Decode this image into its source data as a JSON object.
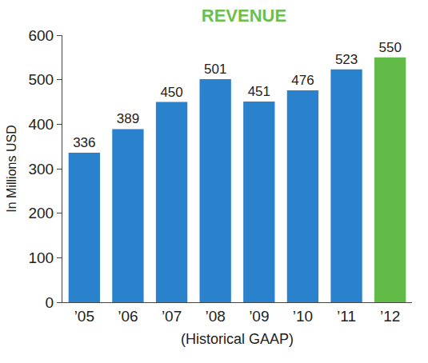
{
  "chart_data": {
    "type": "bar",
    "title": "REVENUE",
    "x_label": "(Historical GAAP)",
    "y_label": "In Millions USD",
    "categories": [
      "’05",
      "’06",
      "’07",
      "’08",
      "’09",
      "’10",
      "’11",
      "’12"
    ],
    "values": [
      336,
      389,
      450,
      501,
      451,
      476,
      523,
      550
    ],
    "colors": [
      "#2b82cc",
      "#2b82cc",
      "#2b82cc",
      "#2b82cc",
      "#2b82cc",
      "#2b82cc",
      "#2b82cc",
      "#62bb46"
    ],
    "ylim": [
      0,
      600
    ],
    "yticks": [
      0,
      100,
      200,
      300,
      400,
      500,
      600
    ],
    "grid": false,
    "data_labels": true
  }
}
